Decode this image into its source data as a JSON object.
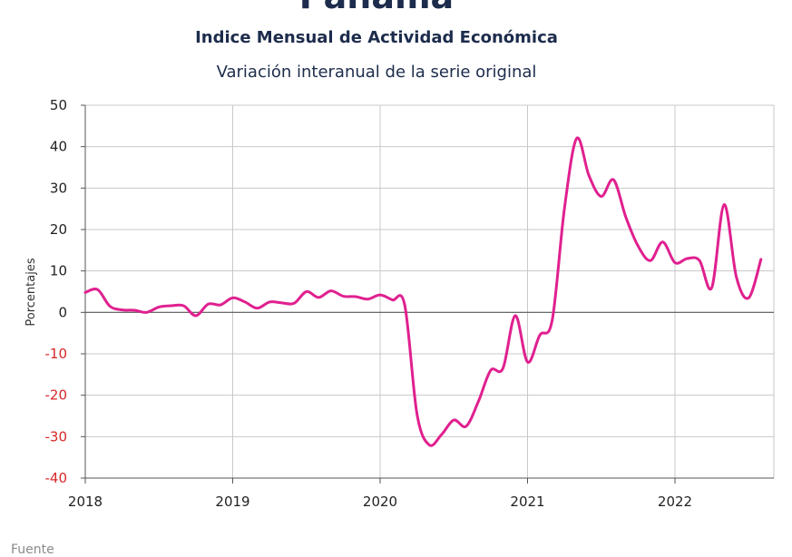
{
  "header": {
    "title": "Panamá",
    "subtitle": "Indice Mensual de  Actividad Económica",
    "subtitle2": "Variación interanual de la serie original"
  },
  "footer": {
    "source_label": "Fuente"
  },
  "colors": {
    "series": "#e0208f",
    "negative_tick": "#d62828",
    "positive_tick": "#222222",
    "grid": "#c8c8c8",
    "title": "#1d2c4c"
  },
  "chart_data": {
    "type": "line",
    "ylabel": "Porcentajes",
    "ylim": [
      -40,
      50
    ],
    "yticks": [
      50,
      40,
      30,
      20,
      10,
      0,
      -10,
      -20,
      -30,
      -40
    ],
    "xlim": [
      "2018-01",
      "2022-08"
    ],
    "xticks": [
      "2018",
      "2019",
      "2020",
      "2021",
      "2022"
    ],
    "grid": true,
    "series": [
      {
        "x": [
          "2018-01",
          "2018-02",
          "2018-03",
          "2018-04",
          "2018-05",
          "2018-06",
          "2018-07",
          "2018-08",
          "2018-09",
          "2018-10",
          "2018-11",
          "2018-12",
          "2019-01",
          "2019-02",
          "2019-03",
          "2019-04",
          "2019-05",
          "2019-06",
          "2019-07",
          "2019-08",
          "2019-09",
          "2019-10",
          "2019-11",
          "2019-12",
          "2020-01",
          "2020-02",
          "2020-03",
          "2020-04",
          "2020-05",
          "2020-06",
          "2020-07",
          "2020-08",
          "2020-09",
          "2020-10",
          "2020-11",
          "2020-12",
          "2021-01",
          "2021-02",
          "2021-03",
          "2021-04",
          "2021-05",
          "2021-06",
          "2021-07",
          "2021-08",
          "2021-09",
          "2021-10",
          "2021-11",
          "2021-12",
          "2022-01",
          "2022-02",
          "2022-03",
          "2022-04",
          "2022-05",
          "2022-06",
          "2022-07",
          "2022-08"
        ],
        "values": [
          4.8,
          5.5,
          1.5,
          0.6,
          0.5,
          0.0,
          1.3,
          1.6,
          1.6,
          -0.8,
          2.0,
          1.8,
          3.5,
          2.5,
          1.0,
          2.5,
          2.3,
          2.2,
          5.0,
          3.6,
          5.2,
          3.9,
          3.8,
          3.2,
          4.2,
          3.0,
          1.8,
          -24.5,
          -32.0,
          -29.5,
          -26.0,
          -27.5,
          -21.5,
          -14.0,
          -13.5,
          -0.8,
          -12.0,
          -5.5,
          -2.0,
          25.0,
          42.0,
          33.0,
          28.0,
          32.0,
          23.0,
          16.0,
          12.5,
          17.0,
          12.0,
          13.0,
          12.5,
          6.0,
          26.0,
          8.5,
          3.5,
          12.8
        ]
      }
    ]
  }
}
